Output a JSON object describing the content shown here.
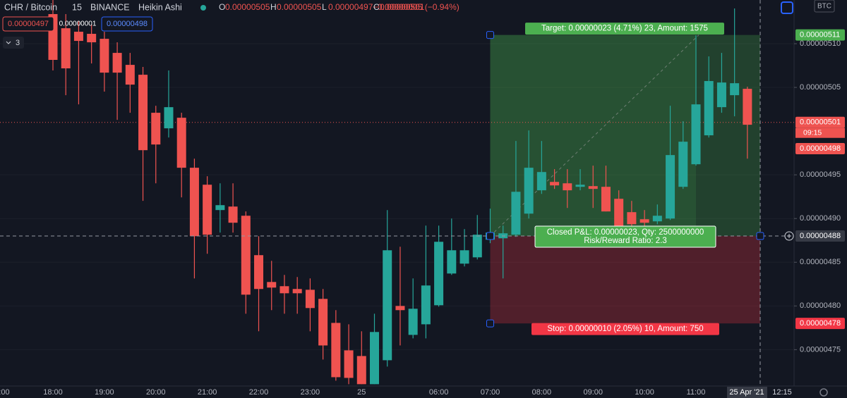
{
  "header": {
    "symbol": "CHR / Bitcoin",
    "interval": "15",
    "exchange": "BINANCE",
    "chart_style": "Heikin Ashi",
    "ohlc": [
      {
        "key": "O",
        "value": "0.00000505"
      },
      {
        "key": "H",
        "value": "0.00000505"
      },
      {
        "key": "L",
        "value": "0.00000497"
      },
      {
        "key": "C",
        "value": "0.00000501"
      }
    ],
    "change": "−0.00000005 (−0.94%)",
    "sell_price": "0.00000497",
    "spread": "0.00000001",
    "buy_price": "0.00000498",
    "indicator_count": "3",
    "currency": "BTC"
  },
  "chart_data": {
    "type": "candlestick",
    "categories": [
      "18:00",
      null,
      null,
      null,
      "19:00",
      null,
      null,
      null,
      "20:00",
      null,
      null,
      null,
      "21:00",
      null,
      null,
      null,
      "22:00",
      null,
      null,
      null,
      "23:00",
      null,
      null,
      null,
      "25",
      null,
      null,
      null,
      null,
      null,
      "06:00",
      null,
      null,
      null,
      "07:00",
      null,
      null,
      null,
      "08:00",
      null,
      null,
      null,
      "09:00",
      null,
      null,
      null,
      "10:00",
      null,
      null,
      null,
      "11:00",
      null,
      null,
      null,
      null
    ],
    "open": [
      5.1339e-06,
      5.1177e-06,
      5.1137e-06,
      5.1113e-06,
      5.1056e-06,
      5.0895e-06,
      5.0758e-06,
      5.0645e-06,
      5.021e-06,
      5.0032e-06,
      5.0153e-06,
      4.9581e-06,
      4.9387e-06,
      4.9097e-06,
      4.9137e-06,
      4.9032e-06,
      4.8581e-06,
      4.8274e-06,
      4.8226e-06,
      4.8194e-06,
      4.8185e-06,
      4.8081e-06,
      4.7806e-06,
      4.7492e-06,
      4.7427e-06,
      4.7105e-06,
      4.7379e-06,
      4.8e-06,
      4.7669e-06,
      4.779e-06,
      4.8008e-06,
      4.8371e-06,
      4.8484e-06,
      4.8556e-06,
      4.8758e-06,
      4.8774e-06,
      4.8815e-06,
      4.9056e-06,
      4.9323e-06,
      4.9419e-06,
      4.9403e-06,
      4.9363e-06,
      4.9371e-06,
      4.9363e-06,
      4.9226e-06,
      4.9073e-06,
      4.8992e-06,
      4.8968e-06,
      4.9e-06,
      4.9363e-06,
      4.9621e-06,
      4.9952e-06,
      5.0274e-06,
      5.0411e-06,
      5.0484e-06
    ],
    "high": [
      5.15e-06,
      5.1339e-06,
      5.1258e-06,
      5.1218e-06,
      5.1137e-06,
      5.1016e-06,
      5.0895e-06,
      5.0734e-06,
      5.029e-06,
      5.0694e-06,
      5.021e-06,
      4.9685e-06,
      4.9484e-06,
      4.9403e-06,
      4.9403e-06,
      4.9081e-06,
      4.8798e-06,
      4.8516e-06,
      4.8355e-06,
      4.8331e-06,
      4.8315e-06,
      4.8194e-06,
      4.7952e-06,
      4.779e-06,
      4.771e-06,
      4.7911e-06,
      4.9097e-06,
      4.8677e-06,
      4.8315e-06,
      4.8919e-06,
      4.8919e-06,
      4.9e-06,
      4.8879e-06,
      4.904e-06,
      4.9113e-06,
      4.8919e-06,
      4.9887e-06,
      5.0008e-06,
      4.9887e-06,
      4.9565e-06,
      4.9565e-06,
      4.9565e-06,
      4.9605e-06,
      4.9605e-06,
      4.9323e-06,
      4.9202e-06,
      4.9097e-06,
      4.9161e-06,
      5.029e-06,
      5.0113e-06,
      5.1097e-06,
      5.0855e-06,
      5.0895e-06,
      5.1403e-06,
      5.0508e-06
    ],
    "low": [
      5.0694e-06,
      5.0411e-06,
      5.0306e-06,
      5.0774e-06,
      5.0452e-06,
      5.0129e-06,
      5.021e-06,
      4.9202e-06,
      4.9403e-06,
      4.9927e-06,
      4.9242e-06,
      4.8315e-06,
      4.8597e-06,
      4.8839e-06,
      4.8839e-06,
      4.7911e-06,
      4.771e-06,
      4.7952e-06,
      4.7911e-06,
      4.7911e-06,
      4.771e-06,
      4.7387e-06,
      4.7145e-06,
      4.7105e-06,
      4.7105e-06,
      4.7105e-06,
      4.7306e-06,
      4.7548e-06,
      4.7629e-06,
      4.7629e-06,
      4.7992e-06,
      4.8355e-06,
      4.8452e-06,
      4.8532e-06,
      4.8718e-06,
      4.8315e-06,
      4.879e-06,
      4.9e-06,
      4.9282e-06,
      4.9339e-06,
      4.9121e-06,
      4.9323e-06,
      4.9121e-06,
      4.9081e-06,
      4.8879e-06,
      4.8879e-06,
      4.8903e-06,
      4.8935e-06,
      4.8984e-06,
      4.9339e-06,
      4.9605e-06,
      4.9927e-06,
      5.021e-06,
      5.0169e-06,
      4.9685e-06
    ],
    "close": [
      5.0815e-06,
      5.0718e-06,
      5.1032e-06,
      5.1016e-06,
      5.0669e-06,
      5.0669e-06,
      5.0532e-06,
      4.9782e-06,
      4.9847e-06,
      5.0274e-06,
      4.9581e-06,
      4.8798e-06,
      4.8815e-06,
      4.9153e-06,
      4.8952e-06,
      4.8129e-06,
      4.8194e-06,
      4.821e-06,
      4.8145e-06,
      4.8145e-06,
      4.7976e-06,
      4.7548e-06,
      4.7185e-06,
      4.7177e-06,
      4.7105e-06,
      4.7702e-06,
      4.8637e-06,
      4.7952e-06,
      4.7968e-06,
      4.8234e-06,
      4.8734e-06,
      4.8637e-06,
      4.8637e-06,
      4.8815e-06,
      4.8839e-06,
      4.8831e-06,
      4.9306e-06,
      4.9581e-06,
      4.9532e-06,
      4.9379e-06,
      4.9323e-06,
      4.9387e-06,
      4.9339e-06,
      4.9081e-06,
      4.8903e-06,
      4.8935e-06,
      4.8952e-06,
      4.9032e-06,
      4.9726e-06,
      4.9879e-06,
      5.0306e-06,
      5.0573e-06,
      5.0556e-06,
      5.0548e-06,
      5.0073e-06
    ],
    "up_color": "#26a69a",
    "down_color": "#ef5350",
    "ylim": [
      4.71e-06,
      5.15e-06
    ],
    "yticks": [
      {
        "value": 5.1e-06,
        "label": "0.00000510"
      },
      {
        "value": 5.05e-06,
        "label": "0.00000505"
      },
      {
        "value": 4.95e-06,
        "label": "0.00000495"
      },
      {
        "value": 4.9e-06,
        "label": "0.00000490"
      },
      {
        "value": 4.85e-06,
        "label": "0.00000485"
      },
      {
        "value": 4.8e-06,
        "label": "0.00000480"
      },
      {
        "value": 4.75e-06,
        "label": "0.00000475"
      }
    ],
    "time_left_label": ":00",
    "crosshair_date": "25 Apr '21",
    "time_right_label": "12:15",
    "last_price": {
      "value": 5.01e-06,
      "label": "0.00000501",
      "countdown": "09:15"
    },
    "ask_price": {
      "value": 4.98e-06,
      "label": "0.00000498"
    },
    "position": {
      "target": {
        "value": 5.11e-06,
        "label": "0.00000511"
      },
      "entry": {
        "value": 4.88e-06,
        "label": "0.00000488"
      },
      "stop": {
        "value": 4.78e-06,
        "label": "0.00000478"
      },
      "target_text": "Target: 0.00000023 (4.71%) 23, Amount: 1575",
      "pnl_text": "Closed P&L: 0.00000023, Qty: 2500000000",
      "ratio_text": "Risk/Reward Ratio: 2.3",
      "stop_text": "Stop: 0.00000010 (2.05%) 10, Amount: 750"
    }
  }
}
